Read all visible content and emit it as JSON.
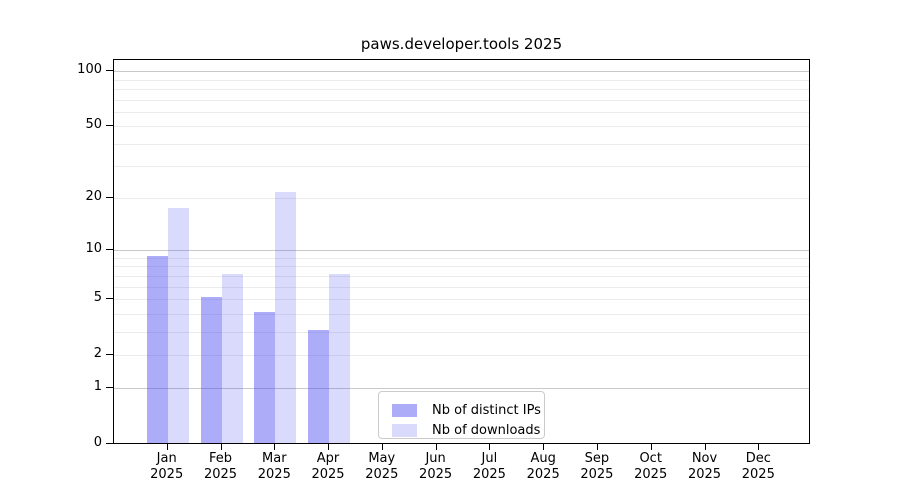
{
  "title": "paws.developer.tools 2025",
  "chart_data": {
    "type": "bar",
    "title": "paws.developer.tools 2025",
    "xlabel": "",
    "ylabel": "",
    "categories": [
      "Jan",
      "Feb",
      "Mar",
      "Apr",
      "May",
      "Jun",
      "Jul",
      "Aug",
      "Sep",
      "Oct",
      "Nov",
      "Dec"
    ],
    "year_label": "2025",
    "series": [
      {
        "name": "Nb of distinct IPs",
        "color": "rgba(70,70,240,0.45)",
        "values": [
          9,
          5,
          4,
          3,
          0,
          0,
          0,
          0,
          0,
          0,
          0,
          0
        ]
      },
      {
        "name": "Nb of downloads",
        "color": "rgba(70,70,240,0.2)",
        "values": [
          17,
          7,
          21,
          7,
          0,
          0,
          0,
          0,
          0,
          0,
          0,
          0
        ]
      }
    ],
    "yscale": "log1p",
    "ylim": [
      0,
      114
    ],
    "y_ticks": [
      0,
      1,
      2,
      5,
      10,
      20,
      50,
      100
    ],
    "y_major_grid": [
      1,
      10,
      100
    ],
    "y_minor_grid": [
      2,
      3,
      4,
      5,
      6,
      7,
      8,
      9,
      20,
      30,
      40,
      50,
      60,
      70,
      80,
      90
    ],
    "grid": true,
    "legend_position": "lower-center",
    "colors": {
      "major_grid": "#c9c9c9",
      "minor_grid": "#ebebeb",
      "spine": "#000000",
      "legend_border": "#cccccc"
    }
  }
}
